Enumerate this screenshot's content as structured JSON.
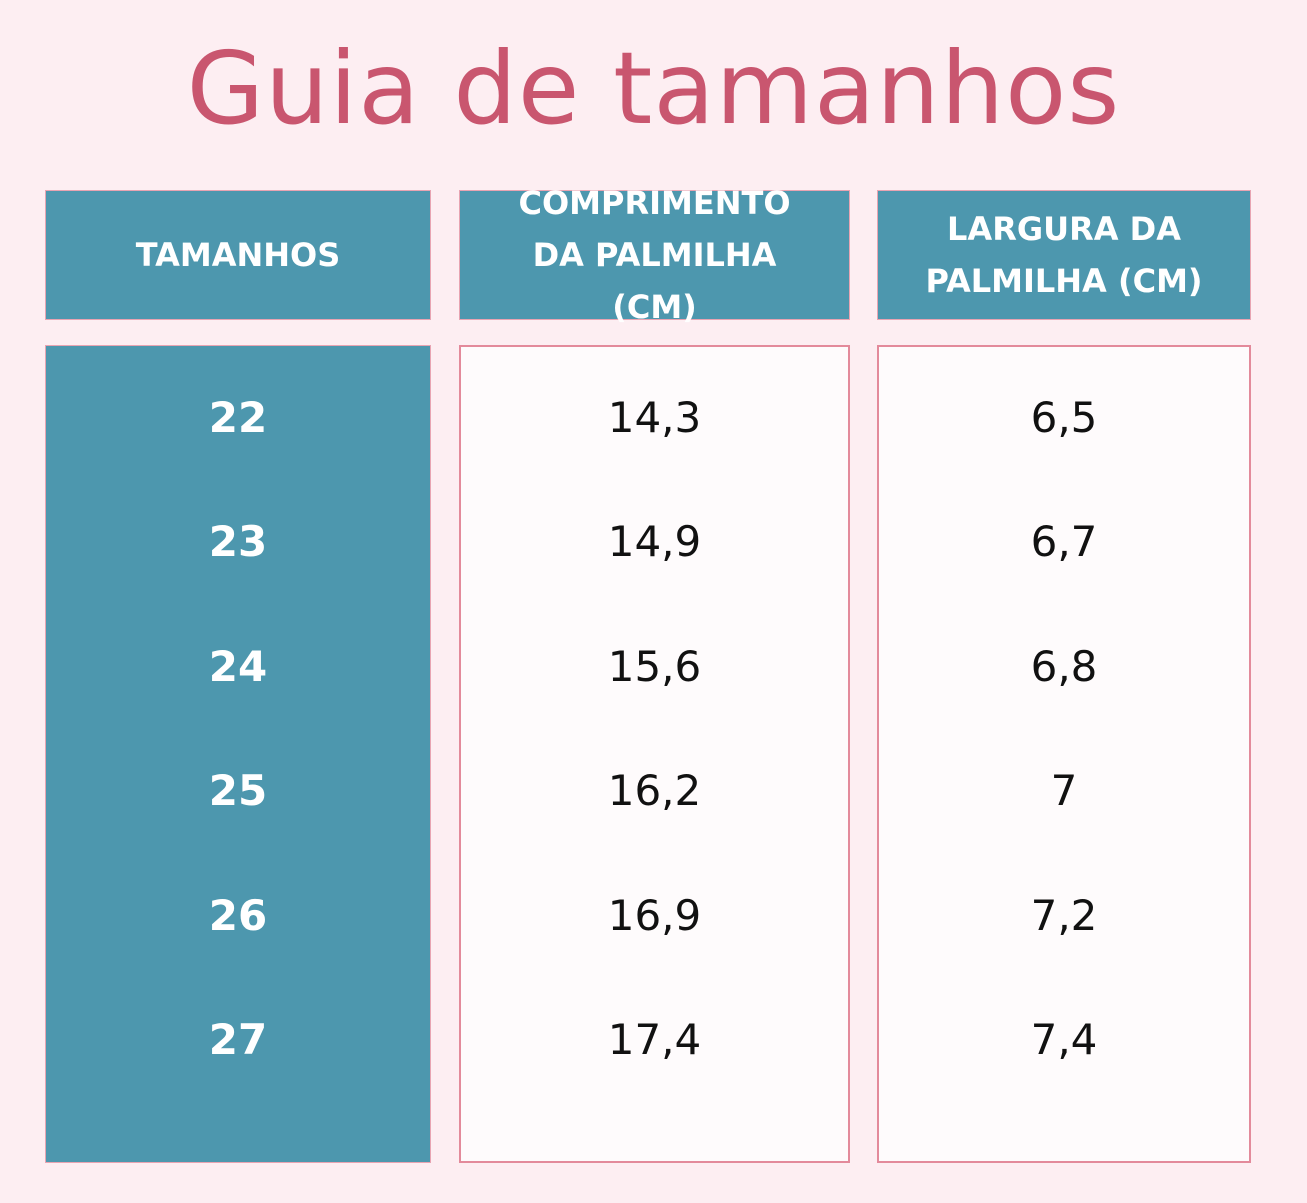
{
  "title": "Guia de tamanhos",
  "table": {
    "headers": [
      "TAMANHOS",
      "COMPRIMENTO DA PALMILHA (CM)",
      "LARGURA DA PALMILHA (CM)"
    ],
    "rows": [
      [
        "22",
        "14,3",
        "6,5"
      ],
      [
        "23",
        "14,9",
        "6,7"
      ],
      [
        "24",
        "15,6",
        "6,8"
      ],
      [
        "25",
        "16,2",
        "7"
      ],
      [
        "26",
        "16,9",
        "7,2"
      ],
      [
        "27",
        "17,4",
        "7,4"
      ]
    ]
  }
}
